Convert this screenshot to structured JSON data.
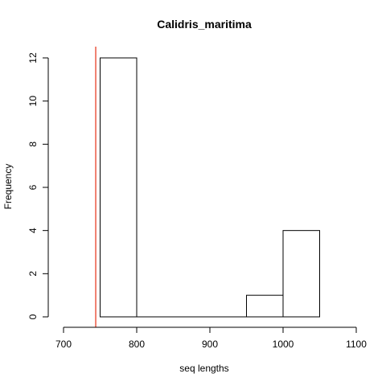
{
  "chart_data": {
    "type": "bar",
    "title": "Calidris_maritima",
    "xlabel": "seq lengths",
    "ylabel": "Frequency",
    "xlim": [
      700,
      1100
    ],
    "ylim": [
      0,
      12
    ],
    "x_ticks": [
      700,
      800,
      900,
      1000,
      1100
    ],
    "y_ticks": [
      0,
      2,
      4,
      6,
      8,
      10,
      12
    ],
    "bins": [
      {
        "start": 750,
        "end": 800,
        "count": 12
      },
      {
        "start": 800,
        "end": 850,
        "count": 0
      },
      {
        "start": 850,
        "end": 900,
        "count": 0
      },
      {
        "start": 900,
        "end": 950,
        "count": 0
      },
      {
        "start": 950,
        "end": 1000,
        "count": 1
      },
      {
        "start": 1000,
        "end": 1050,
        "count": 4
      }
    ],
    "reference_line": {
      "x": 744,
      "color": "#f08070"
    },
    "grid": false
  }
}
